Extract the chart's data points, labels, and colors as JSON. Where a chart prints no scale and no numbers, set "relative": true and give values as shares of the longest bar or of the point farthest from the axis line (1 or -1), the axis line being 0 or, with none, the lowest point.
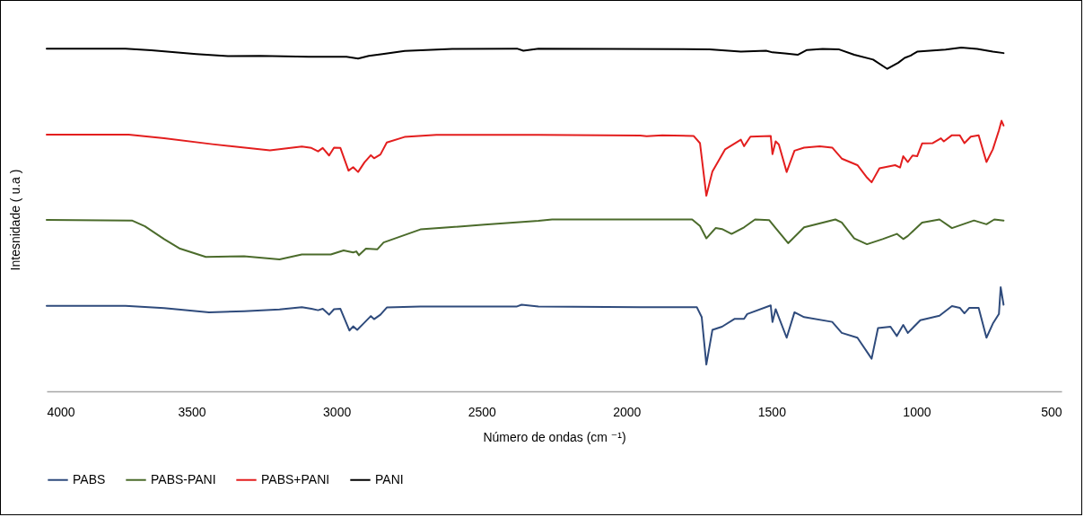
{
  "chart_data": {
    "type": "line",
    "xlabel": "Número de ondas (cm ⁻¹)",
    "ylabel": "Intesnidade ( u.a )",
    "relative": true,
    "xlim": [
      4000,
      500
    ],
    "xticks": [
      4000,
      3500,
      3000,
      2500,
      2000,
      1500,
      1000,
      500
    ],
    "grid": false,
    "legend": "bottom",
    "marker": "none",
    "line_style": "solid",
    "series": [
      {
        "name": "PABS",
        "color": "#2f4b7c",
        "x": [
          4000,
          3728,
          3595,
          3440,
          3319,
          3197,
          3120,
          3087,
          3064,
          3048,
          3026,
          3009,
          2987,
          2956,
          2943,
          2929,
          2904,
          2882,
          2871,
          2849,
          2827,
          2711,
          2378,
          2362,
          2304,
          1953,
          1758,
          1741,
          1725,
          1704,
          1671,
          1627,
          1595,
          1584,
          1503,
          1497,
          1486,
          1448,
          1421,
          1388,
          1291,
          1258,
          1204,
          1155,
          1133,
          1090,
          1068,
          1046,
          1030,
          987,
          921,
          878,
          851,
          835,
          818,
          786,
          759,
          737,
          716,
          710,
          700
        ],
        "values": [
          0.249,
          0.249,
          0.242,
          0.23,
          0.233,
          0.238,
          0.245,
          0.24,
          0.236,
          0.24,
          0.223,
          0.239,
          0.24,
          0.177,
          0.189,
          0.179,
          0.2,
          0.219,
          0.21,
          0.223,
          0.244,
          0.247,
          0.247,
          0.252,
          0.247,
          0.245,
          0.245,
          0.216,
          0.078,
          0.179,
          0.188,
          0.211,
          0.211,
          0.225,
          0.25,
          0.202,
          0.239,
          0.156,
          0.23,
          0.216,
          0.202,
          0.17,
          0.156,
          0.095,
          0.184,
          0.188,
          0.161,
          0.193,
          0.17,
          0.207,
          0.22,
          0.248,
          0.243,
          0.227,
          0.243,
          0.243,
          0.156,
          0.197,
          0.225,
          0.303,
          0.252
        ]
      },
      {
        "name": "PABS-PANI",
        "color": "#4b6b2b",
        "x": [
          4000,
          3706,
          3661,
          3595,
          3540,
          3451,
          3319,
          3197,
          3120,
          3020,
          2976,
          2943,
          2932,
          2923,
          2899,
          2860,
          2838,
          2711,
          2490,
          2304,
          2257,
          1774,
          1747,
          1725,
          1693,
          1671,
          1638,
          1595,
          1557,
          1508,
          1486,
          1443,
          1388,
          1280,
          1258,
          1215,
          1171,
          1117,
          1068,
          1046,
          1030,
          981,
          921,
          878,
          802,
          759,
          732,
          700
        ],
        "values": [
          0.499,
          0.497,
          0.48,
          0.443,
          0.415,
          0.391,
          0.393,
          0.384,
          0.398,
          0.398,
          0.41,
          0.404,
          0.407,
          0.396,
          0.415,
          0.413,
          0.433,
          0.471,
          0.485,
          0.496,
          0.5,
          0.5,
          0.481,
          0.445,
          0.475,
          0.472,
          0.458,
          0.477,
          0.5,
          0.498,
          0.475,
          0.431,
          0.477,
          0.5,
          0.491,
          0.445,
          0.428,
          0.443,
          0.458,
          0.443,
          0.452,
          0.491,
          0.5,
          0.475,
          0.497,
          0.486,
          0.5,
          0.497
        ]
      },
      {
        "name": "PABS+PANI",
        "color": "#e31e1e",
        "x": [
          4000,
          3717,
          3595,
          3429,
          3230,
          3120,
          3087,
          3064,
          3048,
          3026,
          3009,
          2987,
          2959,
          2943,
          2926,
          2904,
          2882,
          2871,
          2849,
          2827,
          2766,
          2656,
          2304,
          1953,
          1931,
          1877,
          1769,
          1747,
          1725,
          1704,
          1660,
          1606,
          1595,
          1573,
          1503,
          1497,
          1486,
          1475,
          1448,
          1421,
          1388,
          1334,
          1291,
          1258,
          1204,
          1171,
          1155,
          1128,
          1074,
          1057,
          1046,
          1030,
          1014,
          998,
          981,
          944,
          916,
          906,
          878,
          851,
          835,
          813,
          786,
          759,
          737,
          716,
          707,
          700
        ],
        "values": [
          0.747,
          0.747,
          0.736,
          0.719,
          0.701,
          0.712,
          0.708,
          0.698,
          0.708,
          0.686,
          0.709,
          0.708,
          0.642,
          0.652,
          0.638,
          0.666,
          0.687,
          0.678,
          0.689,
          0.724,
          0.74,
          0.746,
          0.746,
          0.744,
          0.742,
          0.745,
          0.743,
          0.722,
          0.569,
          0.64,
          0.704,
          0.732,
          0.713,
          0.741,
          0.743,
          0.69,
          0.727,
          0.718,
          0.638,
          0.7,
          0.709,
          0.713,
          0.709,
          0.677,
          0.658,
          0.622,
          0.608,
          0.649,
          0.658,
          0.651,
          0.684,
          0.667,
          0.686,
          0.684,
          0.721,
          0.722,
          0.736,
          0.727,
          0.745,
          0.745,
          0.722,
          0.741,
          0.745,
          0.667,
          0.704,
          0.759,
          0.787,
          0.773
        ]
      },
      {
        "name": "PANI",
        "color": "#000000",
        "x": [
          4000,
          3728,
          3639,
          3484,
          3375,
          3263,
          3097,
          2966,
          2926,
          2889,
          2842,
          2765,
          2601,
          2378,
          2356,
          2304,
          1714,
          1606,
          1519,
          1497,
          1454,
          1410,
          1378,
          1324,
          1269,
          1215,
          1150,
          1101,
          1063,
          1041,
          1020,
          998,
          900,
          846,
          791,
          737,
          700
        ],
        "values": [
          0.997,
          0.997,
          0.992,
          0.981,
          0.975,
          0.976,
          0.973,
          0.973,
          0.968,
          0.976,
          0.981,
          0.99,
          0.996,
          0.997,
          0.991,
          0.997,
          0.995,
          0.988,
          0.991,
          0.986,
          0.983,
          0.979,
          0.993,
          0.996,
          0.995,
          0.979,
          0.965,
          0.938,
          0.956,
          0.97,
          0.977,
          0.988,
          0.994,
          1.0,
          0.996,
          0.988,
          0.984
        ]
      }
    ]
  }
}
